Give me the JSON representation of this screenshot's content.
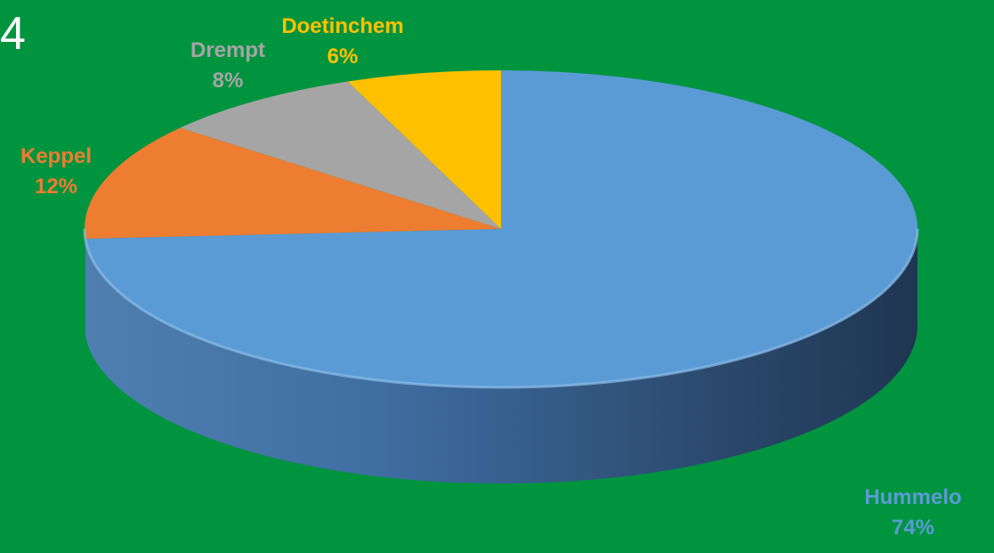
{
  "corner_text": "4",
  "chart_data": {
    "type": "pie",
    "style": "3d",
    "background": "#00943f",
    "slices": [
      {
        "label": "Hummelo",
        "percent_label": "74%",
        "value": 74,
        "color": "#5b9bd5",
        "label_color": "#5b9bd5"
      },
      {
        "label": "Keppel",
        "percent_label": "12%",
        "value": 12,
        "color": "#ed7d31",
        "label_color": "#ed7d31"
      },
      {
        "label": "Drempt",
        "percent_label": "8%",
        "value": 8,
        "color": "#a5a5a5",
        "label_color": "#a5a5a5"
      },
      {
        "label": "Doetinchem",
        "percent_label": "6%",
        "value": 6,
        "color": "#ffc000",
        "label_color": "#ffc000"
      }
    ]
  }
}
